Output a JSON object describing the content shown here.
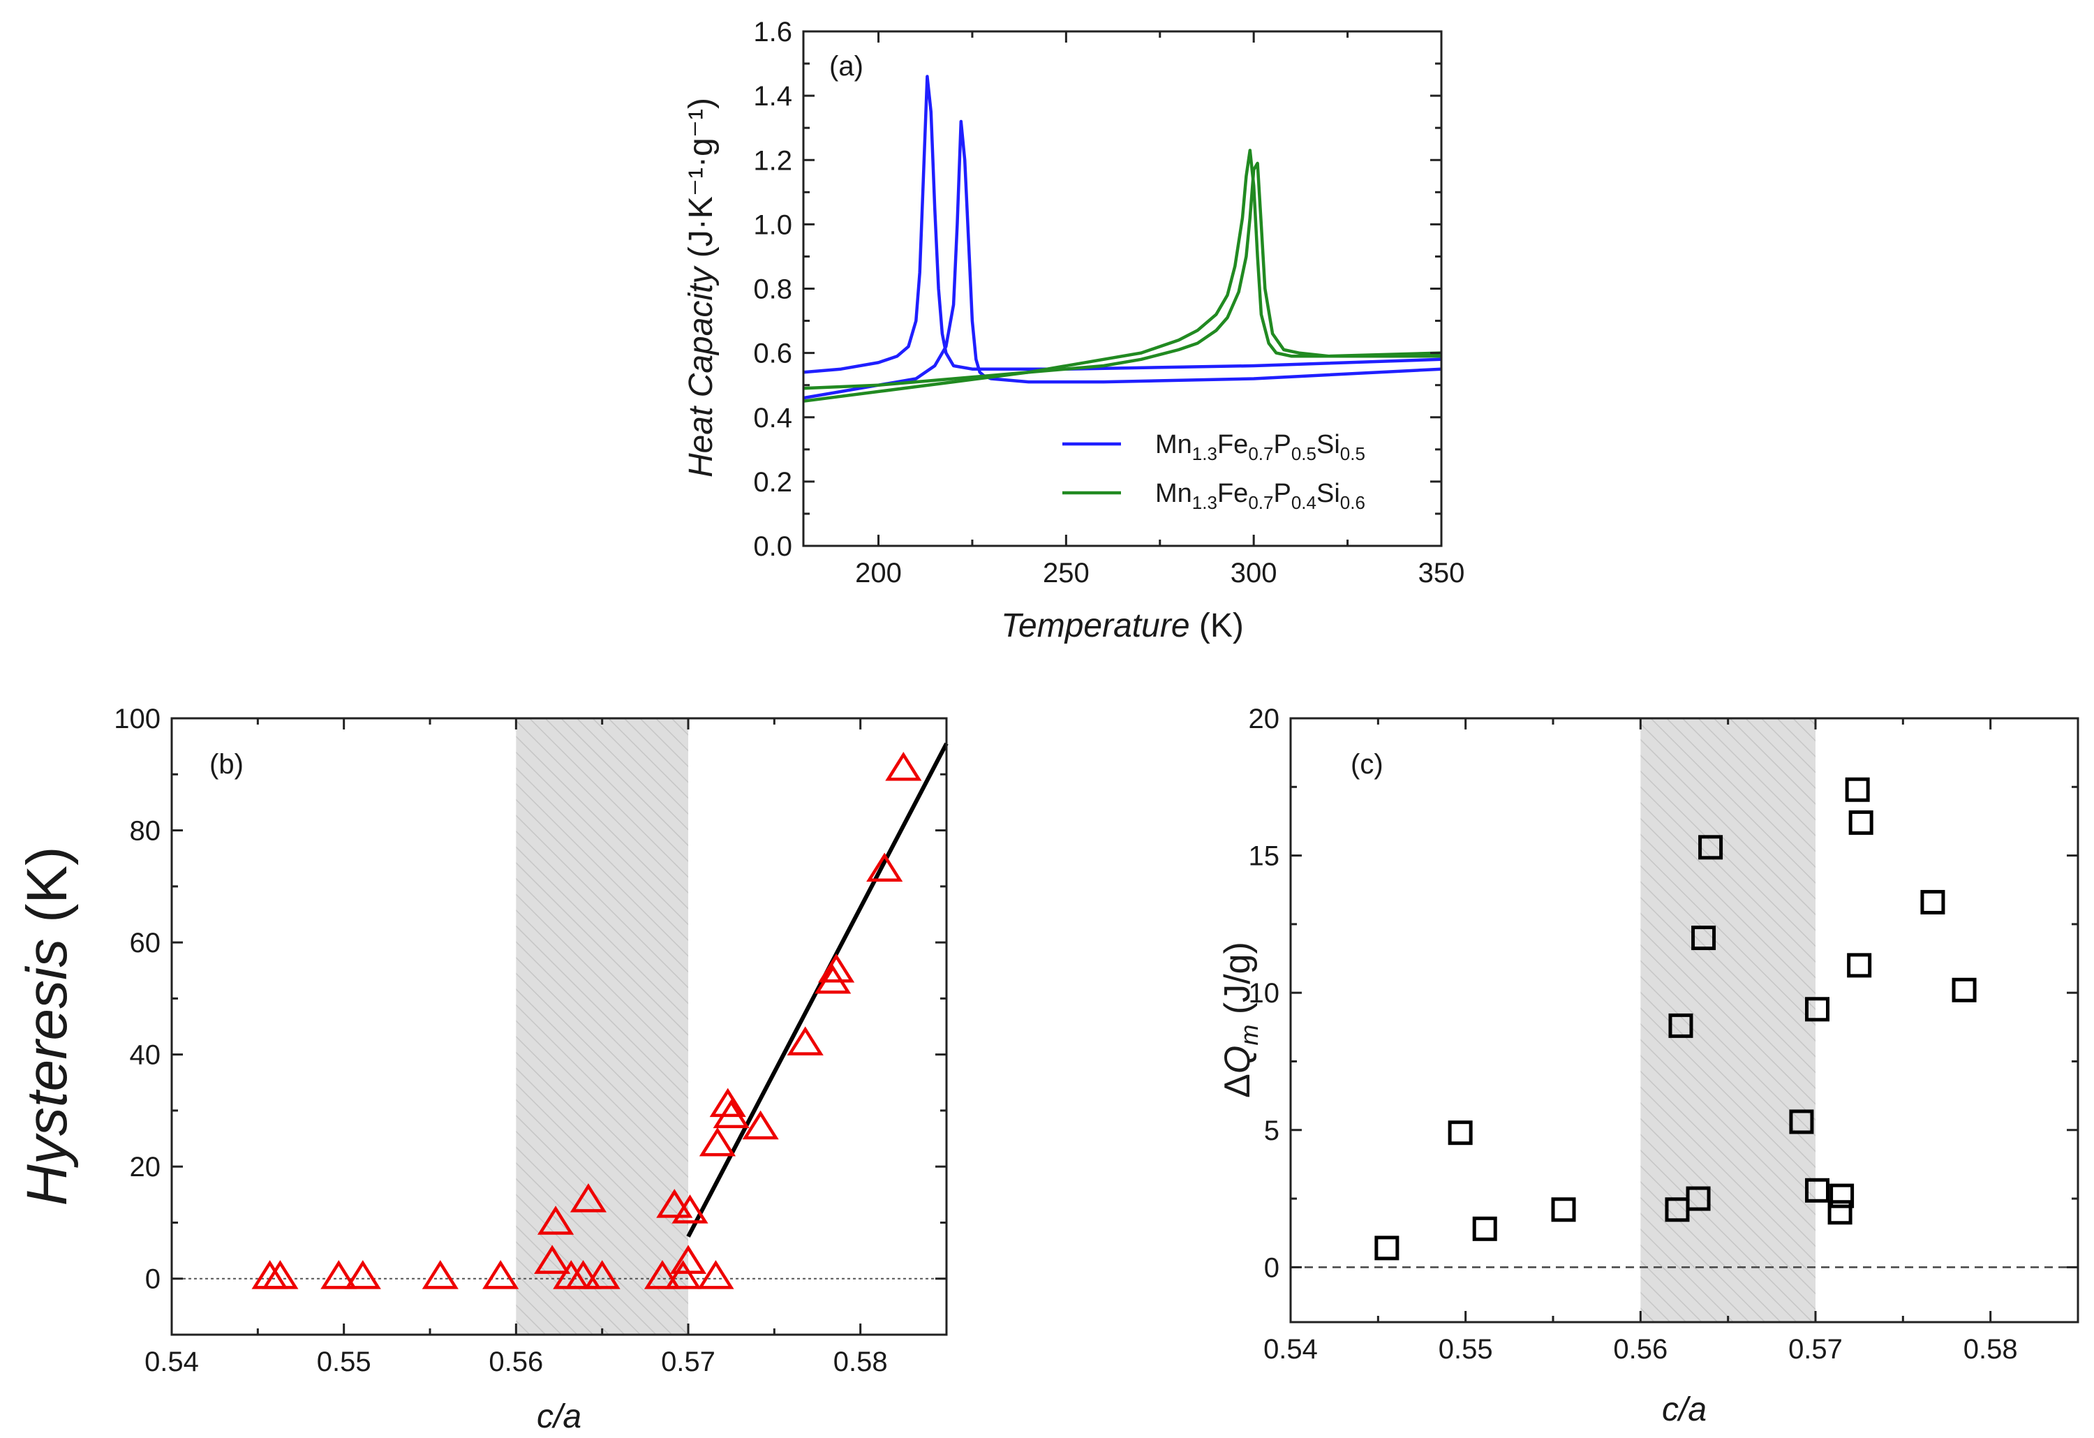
{
  "chart_data": [
    {
      "type": "line",
      "panel_label": "(a)",
      "xlabel_main": "Temperature",
      "xlabel_unit": " (K)",
      "ylabel_main": "Heat Capacity",
      "ylabel_unit": " (J·K⁻¹·g⁻¹)",
      "xlim": [
        180,
        350
      ],
      "ylim": [
        0.0,
        1.6
      ],
      "xticks": [
        "200",
        "250",
        "300",
        "350"
      ],
      "yticks": [
        "0.0",
        "0.2",
        "0.4",
        "0.6",
        "0.8",
        "1.0",
        "1.2",
        "1.4",
        "1.6"
      ],
      "legend_position": "bottom-right",
      "series": [
        {
          "name": "Mn1.3Fe0.7P0.5Si0.5",
          "legend_parts": [
            "Mn",
            "1.3",
            "Fe",
            "0.7",
            "P",
            "0.5",
            "Si",
            "0.5"
          ],
          "color": "#1f1fff",
          "branches": [
            {
              "x": [
                180,
                190,
                200,
                205,
                208,
                210,
                211,
                212,
                213,
                214,
                215,
                216,
                217,
                218,
                220,
                225,
                230,
                250,
                300,
                350
              ],
              "y": [
                0.54,
                0.55,
                0.57,
                0.59,
                0.62,
                0.7,
                0.85,
                1.15,
                1.46,
                1.35,
                1.05,
                0.8,
                0.66,
                0.6,
                0.56,
                0.55,
                0.55,
                0.55,
                0.56,
                0.58
              ]
            },
            {
              "x": [
                180,
                200,
                210,
                215,
                218,
                220,
                221,
                222,
                223,
                224,
                225,
                226,
                227,
                228,
                230,
                240,
                260,
                300,
                350
              ],
              "y": [
                0.46,
                0.5,
                0.52,
                0.56,
                0.62,
                0.75,
                1.0,
                1.32,
                1.2,
                0.95,
                0.7,
                0.58,
                0.54,
                0.53,
                0.52,
                0.51,
                0.51,
                0.52,
                0.55
              ]
            }
          ]
        },
        {
          "name": "Mn1.3Fe0.7P0.4Si0.6",
          "legend_parts": [
            "Mn",
            "1.3",
            "Fe",
            "0.7",
            "P",
            "0.4",
            "Si",
            "0.6"
          ],
          "color": "#218a21",
          "branches": [
            {
              "x": [
                180,
                200,
                220,
                240,
                260,
                270,
                280,
                285,
                290,
                293,
                295,
                297,
                298,
                299,
                300,
                301,
                302,
                304,
                306,
                310,
                320,
                350
              ],
              "y": [
                0.45,
                0.48,
                0.51,
                0.54,
                0.58,
                0.6,
                0.64,
                0.67,
                0.72,
                0.78,
                0.87,
                1.02,
                1.15,
                1.23,
                1.12,
                0.9,
                0.72,
                0.63,
                0.6,
                0.59,
                0.59,
                0.59
              ]
            },
            {
              "x": [
                180,
                200,
                220,
                240,
                260,
                270,
                280,
                285,
                290,
                293,
                296,
                298,
                299,
                300,
                301,
                302,
                303,
                305,
                308,
                312,
                320,
                350
              ],
              "y": [
                0.49,
                0.5,
                0.52,
                0.54,
                0.56,
                0.58,
                0.61,
                0.63,
                0.67,
                0.71,
                0.79,
                0.9,
                1.02,
                1.17,
                1.19,
                1.0,
                0.8,
                0.66,
                0.61,
                0.6,
                0.59,
                0.6
              ]
            }
          ]
        }
      ]
    },
    {
      "type": "scatter",
      "panel_label": "(b)",
      "xlabel": "c/a",
      "ylabel": "Hysteresis (K)",
      "xlim": [
        0.54,
        0.585
      ],
      "ylim": [
        -10,
        100
      ],
      "xticks": [
        "0.54",
        "0.55",
        "0.56",
        "0.57",
        "0.58"
      ],
      "yticks": [
        "0",
        "20",
        "40",
        "60",
        "80",
        "100"
      ],
      "shaded_region": [
        0.56,
        0.57
      ],
      "reference_line_y": 0,
      "marker": "triangle",
      "marker_color": "#ee0000",
      "points": [
        [
          0.5457,
          0.3
        ],
        [
          0.5463,
          0.3
        ],
        [
          0.5497,
          0.3
        ],
        [
          0.5511,
          0.3
        ],
        [
          0.5556,
          0.3
        ],
        [
          0.5591,
          0.3
        ],
        [
          0.5621,
          3
        ],
        [
          0.5623,
          10
        ],
        [
          0.5632,
          0.3
        ],
        [
          0.5639,
          0.3
        ],
        [
          0.5642,
          14
        ],
        [
          0.565,
          0.3
        ],
        [
          0.5685,
          0.3
        ],
        [
          0.5692,
          13
        ],
        [
          0.5697,
          0.3
        ],
        [
          0.5701,
          12
        ],
        [
          0.57,
          3
        ],
        [
          0.5716,
          0.3
        ],
        [
          0.5717,
          24
        ],
        [
          0.5723,
          31
        ],
        [
          0.5725,
          29
        ],
        [
          0.5742,
          27
        ],
        [
          0.5768,
          42
        ],
        [
          0.5784,
          53
        ],
        [
          0.5786,
          55
        ],
        [
          0.5814,
          73
        ],
        [
          0.5825,
          91
        ]
      ],
      "fit_line": {
        "x": [
          0.57,
          0.585
        ],
        "y": [
          7.5,
          95.5
        ],
        "color": "#000000"
      }
    },
    {
      "type": "scatter",
      "panel_label": "(c)",
      "xlabel": "c/a",
      "ylabel": "ΔQm (J/g)",
      "xlim": [
        0.54,
        0.585
      ],
      "ylim": [
        -2,
        20
      ],
      "xticks": [
        "0.54",
        "0.55",
        "0.56",
        "0.57",
        "0.58"
      ],
      "yticks": [
        "0",
        "5",
        "10",
        "15",
        "20"
      ],
      "shaded_region": [
        0.56,
        0.57
      ],
      "reference_line_y": 0,
      "marker": "square",
      "marker_color": "#000000",
      "points": [
        [
          0.5455,
          0.7
        ],
        [
          0.5497,
          4.9
        ],
        [
          0.5511,
          1.4
        ],
        [
          0.5556,
          2.1
        ],
        [
          0.5621,
          2.1
        ],
        [
          0.5623,
          8.8
        ],
        [
          0.5633,
          2.5
        ],
        [
          0.5636,
          12.0
        ],
        [
          0.564,
          15.3
        ],
        [
          0.5692,
          5.3
        ],
        [
          0.5701,
          2.8
        ],
        [
          0.5701,
          9.4
        ],
        [
          0.5714,
          2.0
        ],
        [
          0.5715,
          2.6
        ],
        [
          0.5724,
          17.4
        ],
        [
          0.5725,
          11.0
        ],
        [
          0.5726,
          16.2
        ],
        [
          0.5767,
          13.3
        ],
        [
          0.5785,
          10.1
        ]
      ]
    }
  ]
}
